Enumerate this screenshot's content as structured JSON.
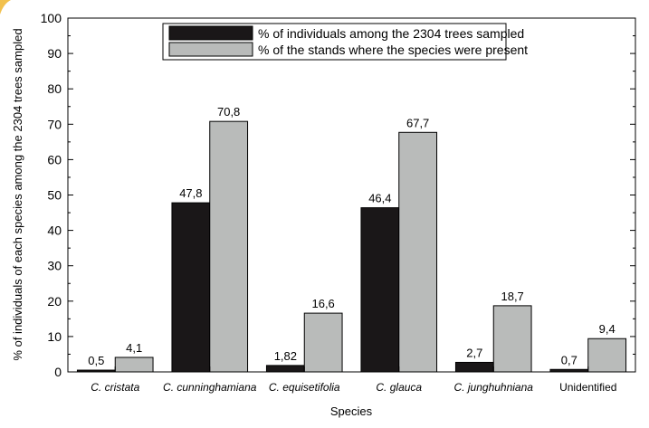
{
  "colors": {
    "series_1": "#1a1718",
    "series_2": "#b9bbba",
    "axis": "#000000",
    "corner_accent": "#f2c14e"
  },
  "chart_data": {
    "type": "bar",
    "categories": [
      "C. cristata",
      "C. cunninghamiana",
      "C. equisetifolia",
      "C. glauca",
      "C. junghuhniana",
      "Unidentified"
    ],
    "category_italic": [
      true,
      true,
      true,
      true,
      true,
      false
    ],
    "series": [
      {
        "name": "% of individuals among the 2304 trees sampled",
        "values": [
          0.5,
          47.8,
          1.82,
          46.4,
          2.7,
          0.7
        ],
        "labels": [
          "0,5",
          "47,8",
          "1,82",
          "46,4",
          "2,7",
          "0,7"
        ],
        "color": "#1a1718"
      },
      {
        "name": "% of the stands where the species were present",
        "values": [
          4.1,
          70.8,
          16.6,
          67.7,
          18.7,
          9.4
        ],
        "labels": [
          "4,1",
          "70,8",
          "16,6",
          "67,7",
          "18,7",
          "9,4"
        ],
        "color": "#b9bbba"
      }
    ],
    "xlabel": "Species",
    "ylabel": "% of individuals of each species among the 2304 trees sampled",
    "ylim": [
      0,
      100
    ],
    "yticks": [
      0,
      10,
      20,
      30,
      40,
      50,
      60,
      70,
      80,
      90,
      100
    ],
    "grid": false,
    "legend_position": "top-center"
  }
}
